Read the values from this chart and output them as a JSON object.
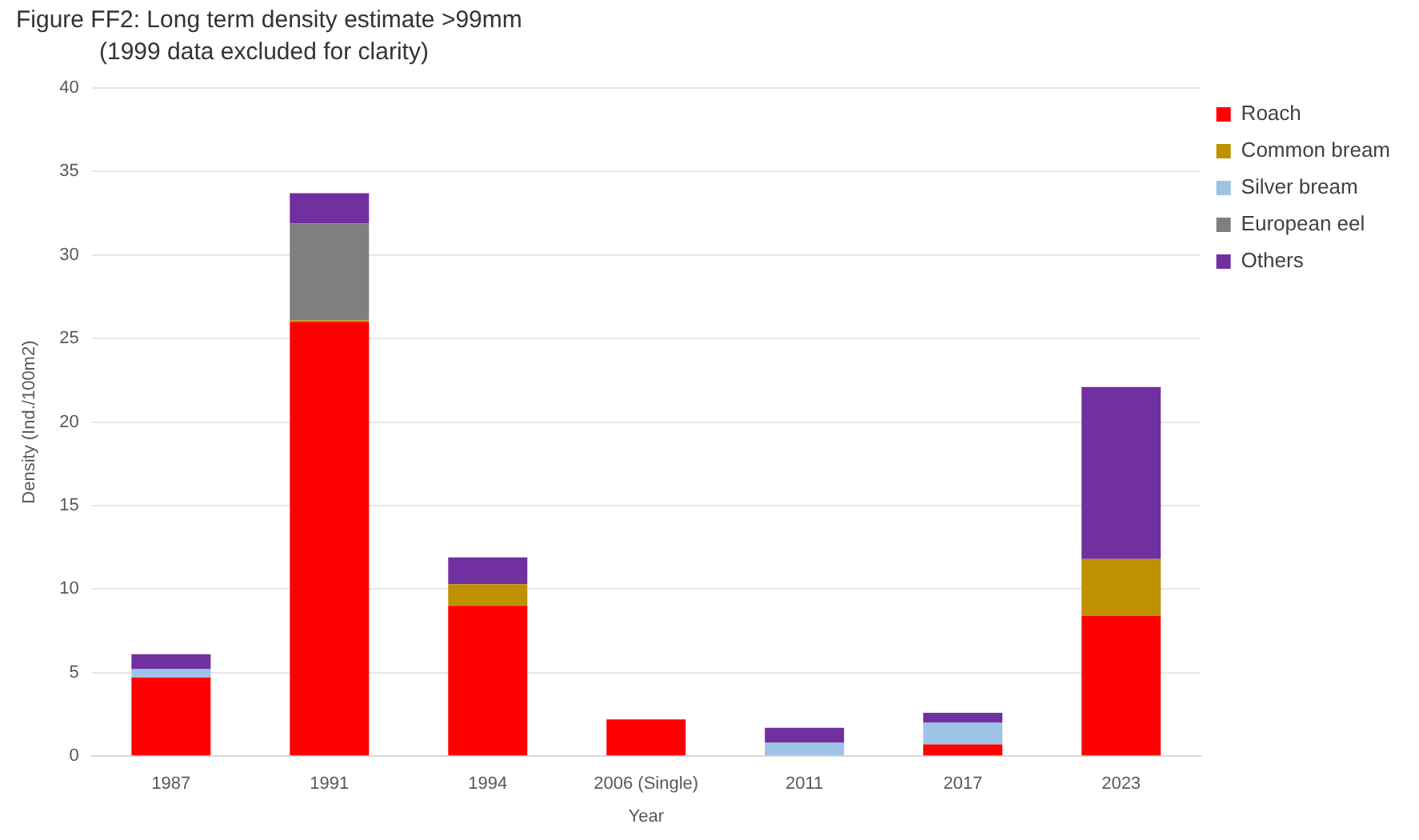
{
  "chart_data": {
    "type": "bar",
    "title": "Figure FF2: Long term density estimate >99mm",
    "subtitle": "(1999 data excluded for clarity)",
    "xlabel": "Year",
    "ylabel": "Density (Ind./100m2)",
    "categories": [
      "1987",
      "1991",
      "1994",
      "2006 (Single)",
      "2011",
      "2017",
      "2023"
    ],
    "stacked": true,
    "ylim": [
      0,
      40
    ],
    "yticks": [
      0,
      5,
      10,
      15,
      20,
      25,
      30,
      35,
      40
    ],
    "grid": "y",
    "legend": "top right",
    "series": [
      {
        "name": "Roach",
        "color": "#ff0000",
        "values": [
          4.7,
          26.0,
          9.0,
          2.2,
          0,
          0.7,
          8.4
        ]
      },
      {
        "name": "Common bream",
        "color": "#bf9000",
        "values": [
          0,
          0.1,
          1.3,
          0,
          0,
          0,
          3.4
        ]
      },
      {
        "name": "Silver bream",
        "color": "#9dc3e6",
        "values": [
          0.5,
          0,
          0,
          0,
          0.8,
          1.3,
          0
        ]
      },
      {
        "name": "European eel",
        "color": "#7f7f7f",
        "values": [
          0,
          5.8,
          0,
          0,
          0,
          0,
          0
        ]
      },
      {
        "name": "Others",
        "color": "#7030a0",
        "values": [
          0.9,
          1.8,
          1.6,
          0,
          0.9,
          0.6,
          10.3
        ]
      }
    ]
  }
}
